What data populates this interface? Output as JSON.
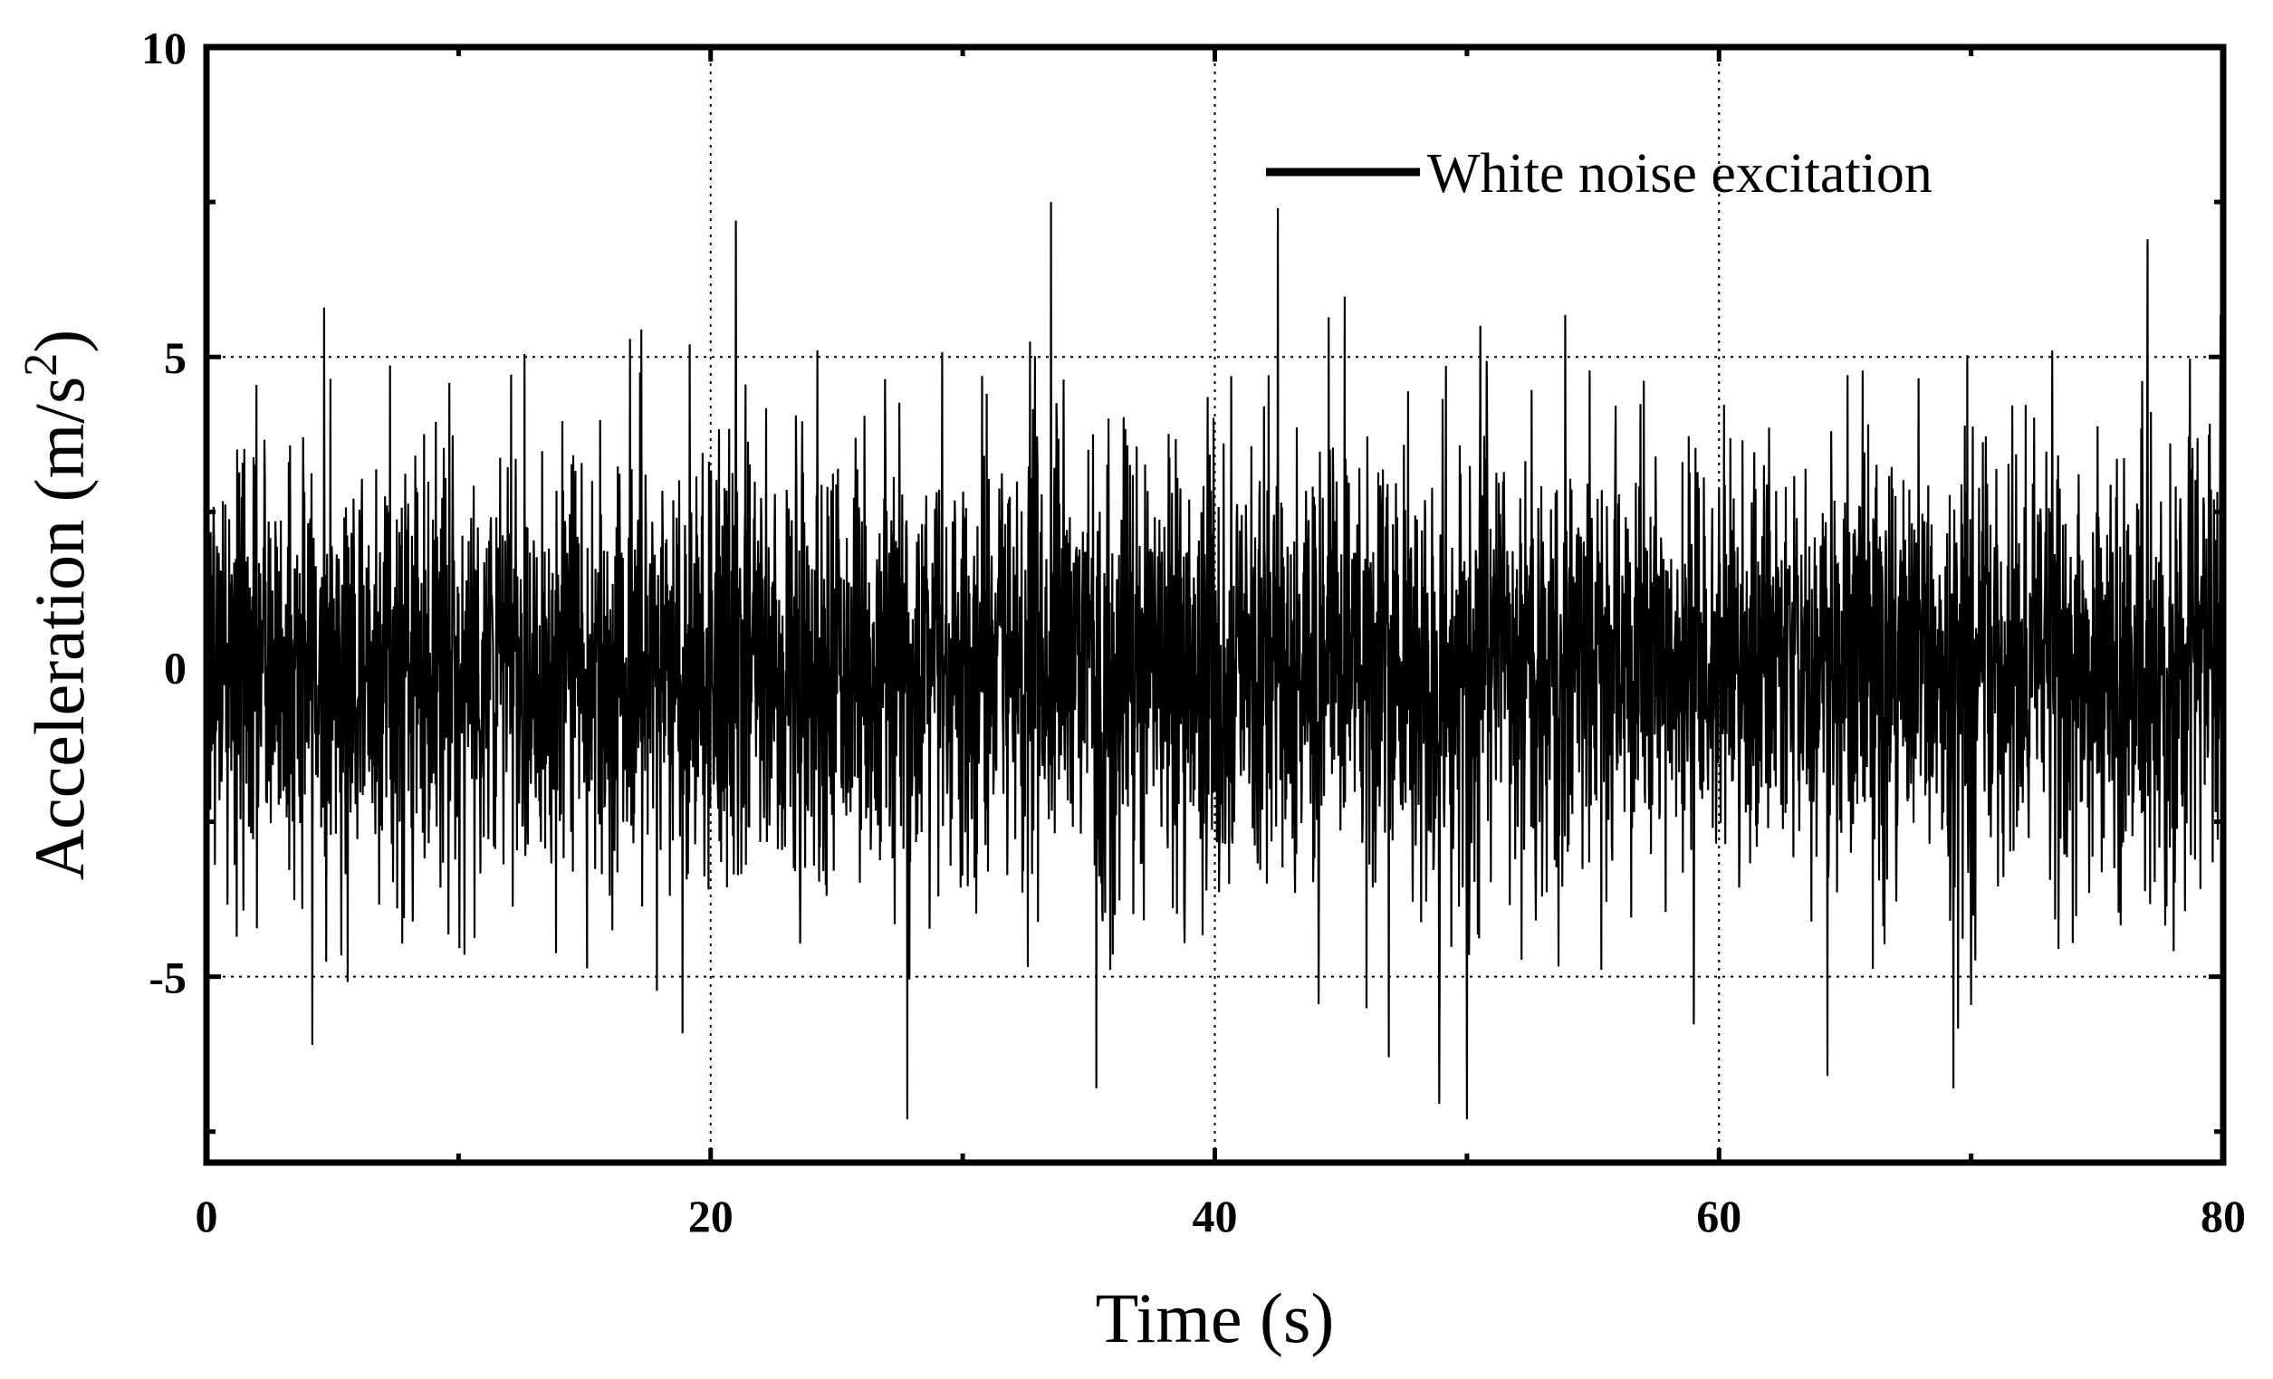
{
  "chart_data": {
    "type": "line",
    "title": "",
    "xlabel": "Time (s)",
    "ylabel_main": "Acceleration (m/s",
    "ylabel_sup": "2",
    "ylabel_close": ")",
    "xlim": [
      0,
      80
    ],
    "ylim": [
      -8,
      10
    ],
    "x_ticks": [
      0,
      20,
      40,
      60,
      80
    ],
    "x_tick_labels": [
      "0",
      "20",
      "40",
      "60",
      "80"
    ],
    "x_minor_ticks": [
      10,
      30,
      50,
      70
    ],
    "y_ticks": [
      -5,
      0,
      5,
      10
    ],
    "y_tick_labels": [
      "-5",
      "0",
      "5",
      "10"
    ],
    "y_minor_ticks": [
      -7.5,
      -2.5,
      2.5,
      7.5
    ],
    "grid": true,
    "grid_style": "dotted",
    "legend_position": "top-right",
    "series": [
      {
        "name": "White noise excitation",
        "color": "#000000",
        "sampling": "dense random signal, approx 0-80 s",
        "rms_estimate": 1.8,
        "y_peak_max": 7.6,
        "y_peak_min": -7.3,
        "notable_peaks": [
          {
            "x": 33.5,
            "y": 7.5
          },
          {
            "x": 42.5,
            "y": 7.4
          },
          {
            "x": 77.0,
            "y": 6.9
          },
          {
            "x": 21.0,
            "y": 7.2
          },
          {
            "x": 27.8,
            "y": -7.3
          },
          {
            "x": 35.3,
            "y": -6.8
          },
          {
            "x": 69.3,
            "y": -6.8
          },
          {
            "x": 4.2,
            "y": -6.1
          },
          {
            "x": 46.9,
            "y": -6.3
          },
          {
            "x": 64.3,
            "y": -6.6
          }
        ]
      }
    ]
  }
}
